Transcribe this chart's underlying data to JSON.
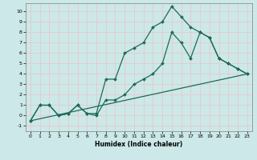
{
  "background_color": "#cce8e8",
  "grid_color": "#e8c8c8",
  "line_color": "#1a6b5a",
  "xlabel": "Humidex (Indice chaleur)",
  "ylim": [
    -1.5,
    10.8
  ],
  "xlim": [
    -0.5,
    23.5
  ],
  "yticks": [
    -1,
    0,
    1,
    2,
    3,
    4,
    5,
    6,
    7,
    8,
    9,
    10
  ],
  "xticks": [
    0,
    1,
    2,
    3,
    4,
    5,
    6,
    7,
    8,
    9,
    10,
    11,
    12,
    13,
    14,
    15,
    16,
    17,
    18,
    19,
    20,
    21,
    22,
    23
  ],
  "line1_x": [
    0,
    1,
    2,
    3,
    4,
    5,
    6,
    7,
    8,
    9,
    10,
    11,
    12,
    13,
    14,
    15,
    16,
    17,
    18,
    19,
    20,
    21,
    22,
    23
  ],
  "line1_y": [
    -0.5,
    1.0,
    1.0,
    0.0,
    0.2,
    1.0,
    0.2,
    0.2,
    3.5,
    3.5,
    6.0,
    6.5,
    7.0,
    8.5,
    9.0,
    10.5,
    9.5,
    8.5,
    8.0,
    7.5,
    5.5,
    5.0,
    4.5,
    4.0
  ],
  "line2_x": [
    0,
    1,
    2,
    3,
    4,
    5,
    6,
    7,
    8,
    9,
    10,
    11,
    12,
    13,
    14,
    15,
    16,
    17,
    18,
    19,
    20,
    21,
    22,
    23
  ],
  "line2_y": [
    -0.5,
    1.0,
    1.0,
    0.0,
    0.2,
    1.0,
    0.2,
    0.0,
    1.5,
    1.5,
    2.0,
    3.0,
    3.5,
    4.0,
    5.0,
    8.0,
    7.0,
    5.5,
    8.0,
    7.5,
    5.5,
    5.0,
    4.5,
    4.0
  ],
  "line3_x": [
    0,
    23
  ],
  "line3_y": [
    -0.5,
    4.0
  ],
  "spine_color": "#808080",
  "xlabel_fontsize": 5.5,
  "tick_fontsize": 4.5,
  "linewidth": 0.9,
  "markersize": 2.0
}
